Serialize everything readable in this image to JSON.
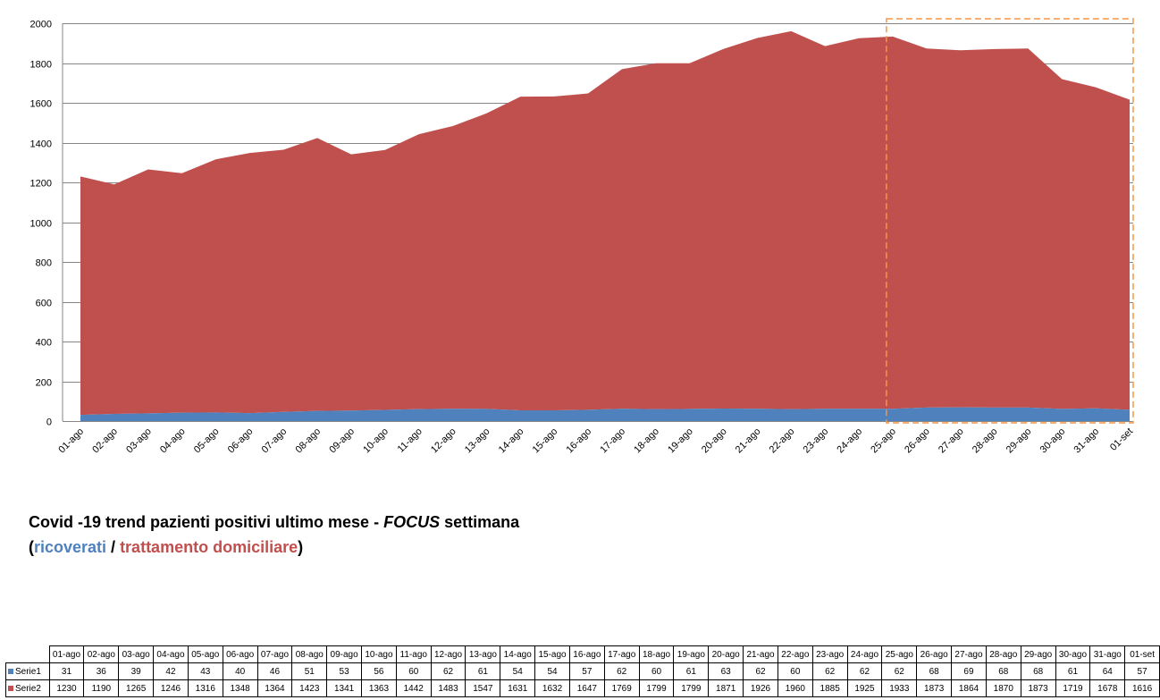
{
  "colors": {
    "series1": "#4F81BD",
    "series2": "#C0504D",
    "focus_box": "#F79646",
    "grid": "#868686"
  },
  "chart_data": {
    "type": "area",
    "stacked": true,
    "categories": [
      "01-ago",
      "02-ago",
      "03-ago",
      "04-ago",
      "05-ago",
      "06-ago",
      "07-ago",
      "08-ago",
      "09-ago",
      "10-ago",
      "11-ago",
      "12-ago",
      "13-ago",
      "14-ago",
      "15-ago",
      "16-ago",
      "17-ago",
      "18-ago",
      "19-ago",
      "20-ago",
      "21-ago",
      "22-ago",
      "23-ago",
      "24-ago",
      "25-ago",
      "26-ago",
      "27-ago",
      "28-ago",
      "29-ago",
      "30-ago",
      "31-ago",
      "01-set"
    ],
    "series": [
      {
        "name": "Serie1",
        "values": [
          31,
          36,
          39,
          42,
          43,
          40,
          46,
          51,
          53,
          56,
          60,
          62,
          61,
          54,
          54,
          57,
          62,
          60,
          61,
          63,
          62,
          60,
          62,
          62,
          62,
          68,
          69,
          68,
          68,
          61,
          64,
          57
        ]
      },
      {
        "name": "Serie2",
        "values": [
          1230,
          1190,
          1265,
          1246,
          1316,
          1348,
          1364,
          1423,
          1341,
          1363,
          1442,
          1483,
          1547,
          1631,
          1632,
          1647,
          1769,
          1799,
          1799,
          1871,
          1926,
          1960,
          1885,
          1925,
          1933,
          1873,
          1864,
          1870,
          1873,
          1719,
          1678,
          1616
        ]
      }
    ],
    "ylim": [
      0,
      2000
    ],
    "yticks": [
      "0",
      "200",
      "400",
      "600",
      "800",
      "1000",
      "1200",
      "1400",
      "1600",
      "1800",
      "2000"
    ],
    "grid": true,
    "focus_range": [
      "25-ago",
      "01-set"
    ]
  },
  "title": {
    "line1_prefix": "Covid -19 trend pazienti positivi ultimo mese - ",
    "line1_focus": "FOCUS",
    "line1_suffix": " settimana",
    "paren_open": "(",
    "ricoverati": "ricoverati",
    "slash": " / ",
    "trattamento": "trattamento",
    "domiciliare": "domiciliare",
    "paren_close": ")"
  }
}
